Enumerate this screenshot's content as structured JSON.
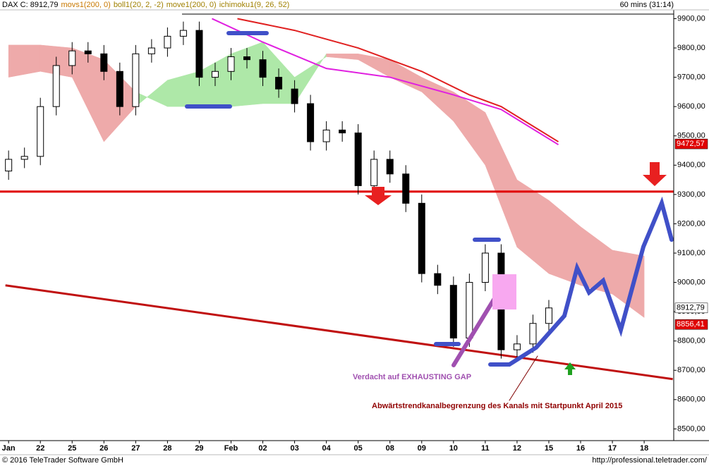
{
  "chart_data": {
    "type": "candlestick",
    "header": {
      "symbol": "DAX C: 8912,79",
      "indicators": [
        {
          "text": "movs1(200, 0)",
          "color": "#c87800"
        },
        {
          "text": "boll1(20, 2, -2)",
          "color": "#a08000"
        },
        {
          "text": "move1(200, 0)",
          "color": "#a08000"
        },
        {
          "text": "ichimoku1(9, 26, 52)",
          "color": "#a08000"
        }
      ],
      "interval": "60 mins (31:14)"
    },
    "categories": [
      "Jan",
      "22",
      "25",
      "26",
      "27",
      "28",
      "29",
      "Feb",
      "02",
      "03",
      "04",
      "05",
      "08",
      "09",
      "10",
      "11",
      "12",
      "15",
      "16",
      "17",
      "18"
    ],
    "xlim": [
      -0.27,
      20.93
    ],
    "ylim": [
      8460,
      9930
    ],
    "yticks": [
      {
        "value": 8500,
        "label": "8500,00"
      },
      {
        "value": 8600,
        "label": "8600,00"
      },
      {
        "value": 8700,
        "label": "8700,00"
      },
      {
        "value": 8800,
        "label": "8800,00"
      },
      {
        "value": 8900,
        "label": "8900,00"
      },
      {
        "value": 9000,
        "label": "9000,00"
      },
      {
        "value": 9100,
        "label": "9100,00"
      },
      {
        "value": 9200,
        "label": "9200,00"
      },
      {
        "value": 9300,
        "label": "9300,00"
      },
      {
        "value": 9400,
        "label": "9400,00"
      },
      {
        "value": 9500,
        "label": "9500,00"
      },
      {
        "value": 9600,
        "label": "9600,00"
      },
      {
        "value": 9700,
        "label": "9700,00"
      },
      {
        "value": 9800,
        "label": "9800,00"
      },
      {
        "value": 9900,
        "label": "9900,00"
      }
    ],
    "candles": {
      "x": [
        0,
        0.5,
        1,
        1.5,
        2,
        2.5,
        3,
        3.5,
        4,
        4.5,
        5,
        5.5,
        6,
        6.5,
        7,
        7.5,
        8,
        8.5,
        9,
        9.5,
        10,
        10.5,
        11,
        11.5,
        12,
        12.5,
        13,
        13.5,
        14,
        14.5,
        15,
        15.5,
        16,
        16.5,
        17
      ],
      "open": [
        9380,
        9420,
        9430,
        9600,
        9740,
        9790,
        9780,
        9720,
        9600,
        9780,
        9800,
        9840,
        9860,
        9700,
        9720,
        9770,
        9760,
        9700,
        9660,
        9610,
        9480,
        9520,
        9510,
        9330,
        9420,
        9370,
        9270,
        9030,
        8990,
        8810,
        9000,
        9100,
        8770,
        8790,
        8860
      ],
      "high": [
        9450,
        9460,
        9630,
        9770,
        9820,
        9820,
        9810,
        9750,
        9810,
        9830,
        9870,
        9890,
        9890,
        9750,
        9800,
        9800,
        9790,
        9730,
        9690,
        9640,
        9550,
        9550,
        9540,
        9450,
        9450,
        9400,
        9300,
        9060,
        9020,
        9030,
        9130,
        9130,
        8820,
        8890,
        8940
      ],
      "low": [
        9350,
        9390,
        9400,
        9570,
        9710,
        9750,
        9690,
        9570,
        9570,
        9750,
        9770,
        9810,
        9670,
        9670,
        9690,
        9730,
        9670,
        9630,
        9580,
        9450,
        9450,
        9480,
        9300,
        9300,
        9340,
        9240,
        9000,
        8960,
        8780,
        8780,
        8970,
        8740,
        8740,
        8760,
        8830
      ],
      "close": [
        9420,
        9430,
        9600,
        9740,
        9790,
        9780,
        9720,
        9600,
        9780,
        9800,
        9840,
        9860,
        9700,
        9720,
        9770,
        9760,
        9700,
        9660,
        9610,
        9480,
        9520,
        9510,
        9330,
        9420,
        9370,
        9270,
        9030,
        8990,
        8810,
        9000,
        9100,
        8770,
        8790,
        8860,
        8912.79
      ]
    },
    "cloud": {
      "x": [
        0,
        1,
        2,
        3,
        4,
        5,
        6,
        7,
        8,
        9,
        10,
        11,
        12,
        13,
        14,
        15,
        16,
        17,
        18,
        19,
        20
      ],
      "span_a": [
        9700,
        9720,
        9700,
        9480,
        9600,
        9690,
        9720,
        9780,
        9820,
        9700,
        9770,
        9760,
        9700,
        9650,
        9550,
        9400,
        9120,
        9030,
        8990,
        8960,
        8880
      ],
      "span_b": [
        9810,
        9810,
        9800,
        9760,
        9650,
        9600,
        9600,
        9600,
        9610,
        9610,
        9780,
        9780,
        9760,
        9700,
        9650,
        9580,
        9350,
        9280,
        9190,
        9110,
        9090
      ],
      "up_color": "#aee8a8",
      "down_color": "#eeaaaa"
    },
    "overlays": [
      {
        "color": "#e02020",
        "x": [
          7.2,
          9,
          11,
          13,
          14.5,
          15.5,
          17.3
        ],
        "values": [
          9900,
          9860,
          9800,
          9720,
          9640,
          9600,
          9480
        ]
      },
      {
        "color": "#e020e0",
        "x": [
          6.4,
          8,
          10,
          12,
          14,
          15.5,
          17.3
        ],
        "values": [
          9900,
          9820,
          9730,
          9700,
          9640,
          9590,
          9470
        ]
      },
      {
        "color": "#c01010",
        "x": [
          -0.1,
          20.9
        ],
        "values": [
          8990,
          8670
        ]
      }
    ],
    "hline": {
      "value": 9310,
      "color": "#e00000"
    },
    "price_markers": [
      {
        "value": 9472.57,
        "label": "9472,57",
        "color": "#e00000",
        "text_color": "#ffffff"
      },
      {
        "value": 8912.79,
        "label": "8912,79",
        "color": "#ffffff",
        "text_color": "#000000"
      },
      {
        "value": 8856.41,
        "label": "8856,41",
        "color": "#e00000",
        "text_color": "#ffffff"
      }
    ],
    "annotations": [
      "Verdacht auf EXHAUSTING GAP",
      "Abwärtstrendkanalbegrenzung des Kanals mit Startpunkt April 2015"
    ],
    "footer": {
      "copyright": "© 2016 TeleTrader Software GmbH",
      "url": "http://professional.teletrader.com/"
    }
  }
}
